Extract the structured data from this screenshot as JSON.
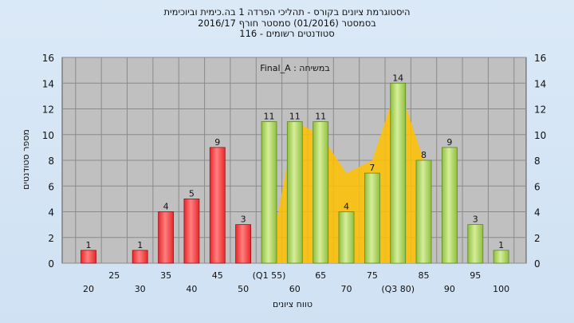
{
  "header": {
    "title_line1": "היסטוגרמת ציונים בקורס - תהליכי הפרדה 1 בה.כימית וביוכימית",
    "title_line2": "בסמסטר  (01/2016)  סמסטר חורף 2016/17",
    "title_line3": "סטודנטים רשומים - 116"
  },
  "colors": {
    "failing_bar": "#e8272a",
    "passing_bar": "#8fbf3f",
    "distribution_area": "#ffc000",
    "plot_background": "#c0c0c0",
    "page_background": "#d4e5f6"
  },
  "chart_data": {
    "type": "bar",
    "title": "במשיחה : Final_A",
    "xlabel": "טווח ציונים",
    "ylabel": "מספר סטודנטים",
    "ylim": [
      0,
      16
    ],
    "yticks": [
      0,
      2,
      4,
      6,
      8,
      10,
      12,
      14,
      16
    ],
    "grid": true,
    "categories": [
      "20",
      "25",
      "30",
      "35",
      "40",
      "45",
      "50",
      "55",
      "60",
      "65",
      "70",
      "75",
      "80",
      "85",
      "90",
      "95",
      "100"
    ],
    "tick_labels": [
      "20",
      "25",
      "30",
      "35",
      "40",
      "45",
      "50",
      "(Q1 55)",
      "60",
      "65",
      "70",
      "75",
      "(Q3 80)",
      "85",
      "90",
      "95",
      "100"
    ],
    "series": [
      {
        "values": [
          1,
          0,
          1,
          4,
          5,
          9,
          3,
          11,
          11,
          11,
          4,
          7,
          14,
          8,
          9,
          3,
          1
        ],
        "data_labels": [
          "1",
          "",
          "1",
          "4",
          "5",
          "9",
          "3",
          "11",
          "11",
          "11",
          "4",
          "7",
          "14",
          "8",
          "9",
          "3",
          "1"
        ],
        "pass_threshold": 55
      }
    ],
    "distribution_area": {
      "x": [
        55,
        60,
        65,
        70,
        75,
        80,
        85
      ],
      "y": [
        0,
        11,
        10,
        7,
        8,
        14,
        8
      ]
    }
  }
}
